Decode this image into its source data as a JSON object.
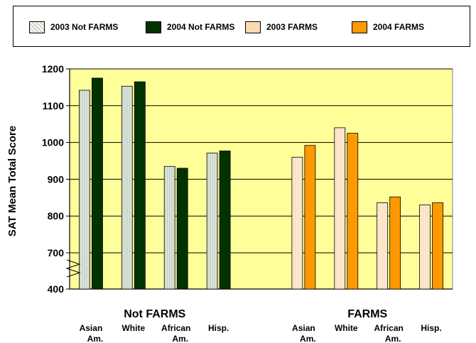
{
  "chart_data": {
    "type": "bar",
    "ylabel": "SAT Mean  Total Score",
    "y_ticks": [
      400,
      700,
      800,
      900,
      1000,
      1100,
      1200
    ],
    "ylim": [
      400,
      1200
    ],
    "axis_break": "between 400 and 700",
    "grid": true,
    "plot_background": "#ffff99",
    "legend_position": "top",
    "groups": [
      {
        "label": "Not FARMS",
        "categories": [
          "Asian Am.",
          "White",
          "African Am.",
          "Hisp."
        ]
      },
      {
        "label": "FARMS",
        "categories": [
          "Asian Am.",
          "White",
          "African Am.",
          "Hisp."
        ]
      }
    ],
    "category_labels": [
      [
        "Asian",
        "Am."
      ],
      [
        "White"
      ],
      [
        "African",
        "Am."
      ],
      [
        "Hisp."
      ],
      [
        "Asian",
        "Am."
      ],
      [
        "White"
      ],
      [
        "African",
        "Am."
      ],
      [
        "Hisp."
      ]
    ],
    "series": [
      {
        "name": "2003 Not FARMS",
        "color": "#c8d3c5",
        "group": 0,
        "values": [
          1142,
          1153,
          935,
          971
        ]
      },
      {
        "name": "2004 Not FARMS",
        "color": "#003300",
        "group": 0,
        "values": [
          1175,
          1165,
          930,
          977
        ]
      },
      {
        "name": "2003 FARMS",
        "color": "#fde0c0",
        "group": 1,
        "values": [
          960,
          1040,
          836,
          830
        ]
      },
      {
        "name": "2004 FARMS",
        "color": "#ff9900",
        "group": 1,
        "values": [
          992,
          1025,
          852,
          836
        ]
      }
    ]
  }
}
